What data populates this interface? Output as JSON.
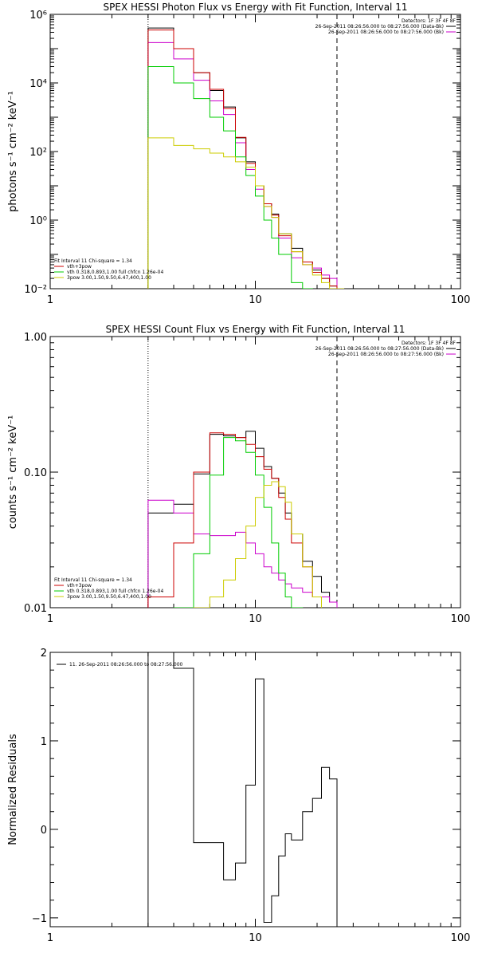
{
  "chart_data": [
    {
      "type": "line",
      "title": "SPEX HESSI Photon Flux vs Energy with Fit Function, Interval 11",
      "xlabel": "",
      "ylabel": "photons s⁻¹ cm⁻² keV⁻¹",
      "xscale": "log",
      "yscale": "log",
      "xlim": [
        1,
        100
      ],
      "ylim": [
        0.01,
        1000000
      ],
      "x_ticks": [
        {
          "v": 1,
          "label": "1"
        },
        {
          "v": 10,
          "label": "10"
        },
        {
          "v": 100,
          "label": "100"
        }
      ],
      "y_ticks": [
        {
          "v": 0.01,
          "label": "10⁻²"
        },
        {
          "v": 1,
          "label": "10⁰"
        },
        {
          "v": 100,
          "label": "10²"
        },
        {
          "v": 10000,
          "label": "10⁴"
        },
        {
          "v": 1000000,
          "label": "10⁶"
        }
      ],
      "dotted_x": 3,
      "dashed_x": 25,
      "legend_tr": [
        {
          "text": "Detectors: 1F 3F 4F 8F",
          "color": "#000000",
          "line": false
        },
        {
          "text": "26-Sep-2011 08:26:56.000 to 08:27:56.000 (Data-Bk)",
          "color": "#000000",
          "line": true
        },
        {
          "text": "26-Sep-2011 08:26:56.000 to 08:27:56.000 (Bk)",
          "color": "#cc00cc",
          "line": true
        }
      ],
      "legend_bl": [
        {
          "text": "Fit Interval 11    Chi-square = 1.34",
          "color": "#000000",
          "line": false
        },
        {
          "text": "vth+3pow",
          "color": "#cc0000",
          "line": true
        },
        {
          "text": "vth 0.318,0.893,1.00  full chfcn 1.26e-04",
          "color": "#00cc00",
          "line": true
        },
        {
          "text": "3pow 3.00,1.50,9.50,6.47,400,1.00",
          "color": "#cccc00",
          "line": true
        }
      ],
      "series": [
        {
          "color": "#000000",
          "edges": [
            3,
            4,
            5,
            6,
            7,
            8,
            9,
            10,
            11,
            12,
            13,
            15,
            17,
            19,
            21,
            23,
            25
          ],
          "values": [
            400000,
            100000,
            20000,
            6000,
            2000,
            250,
            50,
            10,
            3,
            1.5,
            0.4,
            0.15,
            0.06,
            0.035,
            0.02,
            0.012
          ]
        },
        {
          "color": "#cc00cc",
          "edges": [
            3,
            4,
            5,
            6,
            7,
            8,
            9,
            10,
            11,
            12,
            13,
            15,
            17,
            19,
            21,
            23,
            25
          ],
          "values": [
            150000,
            50000,
            12000,
            3000,
            1200,
            180,
            30,
            8,
            2.5,
            1.2,
            0.3,
            0.08,
            0.05,
            0.04,
            0.025,
            0.02
          ]
        },
        {
          "color": "#cc0000",
          "edges": [
            3,
            4,
            5,
            6,
            7,
            8,
            9,
            10,
            11,
            12,
            13,
            15,
            17,
            19,
            21,
            23,
            25
          ],
          "values": [
            350000,
            100000,
            20000,
            6500,
            1800,
            260,
            45,
            10,
            3,
            1.4,
            0.35,
            0.12,
            0.06,
            0.03,
            0.02,
            0.012
          ]
        },
        {
          "color": "#00cc00",
          "edges": [
            3,
            4,
            5,
            6,
            7,
            8,
            9,
            10,
            11,
            12,
            13,
            15,
            17,
            19
          ],
          "values": [
            30000,
            10000,
            3500,
            1000,
            400,
            70,
            20,
            5,
            1,
            0.3,
            0.1,
            0.015,
            0.009
          ]
        },
        {
          "color": "#cccc00",
          "edges": [
            3,
            4,
            5,
            6,
            7,
            8,
            9,
            10,
            11,
            12,
            13,
            15,
            17,
            19,
            21,
            23,
            25,
            27
          ],
          "values": [
            250,
            150,
            120,
            90,
            70,
            50,
            35,
            10,
            2.5,
            1.2,
            0.4,
            0.12,
            0.05,
            0.025,
            0.015,
            0.01,
            0.009
          ]
        }
      ]
    },
    {
      "type": "line",
      "title": "SPEX HESSI Count Flux vs Energy with Fit Function, Interval 11",
      "xlabel": "",
      "ylabel": "counts s⁻¹ cm⁻² keV⁻¹",
      "xscale": "log",
      "yscale": "log",
      "xlim": [
        1,
        100
      ],
      "ylim": [
        0.01,
        1.0
      ],
      "x_ticks": [
        {
          "v": 1,
          "label": "1"
        },
        {
          "v": 10,
          "label": "10"
        },
        {
          "v": 100,
          "label": "100"
        }
      ],
      "y_ticks": [
        {
          "v": 0.01,
          "label": "0.01"
        },
        {
          "v": 0.1,
          "label": "0.10"
        },
        {
          "v": 1,
          "label": "1.00"
        }
      ],
      "dotted_x": 3,
      "dashed_x": 25,
      "legend_tr": [
        {
          "text": "Detectors: 1F 3F 4F 8F",
          "color": "#000000",
          "line": false
        },
        {
          "text": "26-Sep-2011 08:26:56.000 to 08:27:56.000 (Data-Bk)",
          "color": "#000000",
          "line": true
        },
        {
          "text": "26-Sep-2011 08:26:56.000 to 08:27:56.000 (Bk)",
          "color": "#cc00cc",
          "line": true
        }
      ],
      "legend_bl": [
        {
          "text": "Fit Interval 11    Chi-square = 1.34",
          "color": "#000000",
          "line": false
        },
        {
          "text": "vth+3pow",
          "color": "#cc0000",
          "line": true
        },
        {
          "text": "vth 0.318,0.893,1.00  full chfcn 1.26e-04",
          "color": "#00cc00",
          "line": true
        },
        {
          "text": "3pow 3.00,1.50,9.50,6.47,400,1.00",
          "color": "#cccc00",
          "line": true
        }
      ],
      "series": [
        {
          "color": "#000000",
          "edges": [
            3,
            4,
            5,
            6,
            7,
            8,
            9,
            10,
            11,
            12,
            13,
            14,
            15,
            17,
            19,
            21,
            23,
            25
          ],
          "values": [
            0.05,
            0.058,
            0.097,
            0.19,
            0.185,
            0.18,
            0.2,
            0.15,
            0.11,
            0.09,
            0.07,
            0.05,
            0.035,
            0.022,
            0.017,
            0.013,
            0.011
          ]
        },
        {
          "color": "#cc00cc",
          "edges": [
            3,
            4,
            5,
            6,
            7,
            8,
            9,
            10,
            11,
            12,
            13,
            14,
            15,
            17,
            19,
            21,
            23,
            25
          ],
          "values": [
            0.062,
            0.05,
            0.035,
            0.034,
            0.034,
            0.036,
            0.03,
            0.025,
            0.02,
            0.018,
            0.016,
            0.015,
            0.014,
            0.013,
            0.012,
            0.012,
            0.011
          ]
        },
        {
          "color": "#cc0000",
          "edges": [
            3,
            4,
            5,
            6,
            7,
            8,
            9,
            10,
            11,
            12,
            13,
            14,
            15,
            17,
            19,
            21
          ],
          "values": [
            0.012,
            0.03,
            0.1,
            0.195,
            0.19,
            0.18,
            0.16,
            0.13,
            0.105,
            0.09,
            0.065,
            0.045,
            0.03,
            0.02,
            0.012
          ]
        },
        {
          "color": "#00cc00",
          "edges": [
            4,
            5,
            6,
            7,
            8,
            9,
            10,
            11,
            12,
            13,
            14,
            15,
            17
          ],
          "values": [
            0.01,
            0.025,
            0.095,
            0.18,
            0.17,
            0.14,
            0.095,
            0.055,
            0.03,
            0.018,
            0.012,
            0.01
          ]
        },
        {
          "color": "#cccc00",
          "edges": [
            5,
            6,
            7,
            8,
            9,
            10,
            11,
            12,
            13,
            14,
            15,
            17,
            19,
            21
          ],
          "values": [
            0.01,
            0.012,
            0.016,
            0.023,
            0.04,
            0.065,
            0.08,
            0.085,
            0.078,
            0.06,
            0.035,
            0.02,
            0.012
          ]
        }
      ]
    },
    {
      "type": "line",
      "title": "",
      "xlabel": "",
      "ylabel": "Normalized Residuals",
      "xscale": "log",
      "yscale": "linear",
      "xlim": [
        1,
        100
      ],
      "ylim": [
        -1.1,
        2.0
      ],
      "x_ticks": [
        {
          "v": 1,
          "label": "1"
        },
        {
          "v": 10,
          "label": "10"
        },
        {
          "v": 100,
          "label": "100"
        }
      ],
      "y_ticks": [
        {
          "v": -1,
          "label": "−1"
        },
        {
          "v": 0,
          "label": "0"
        },
        {
          "v": 1,
          "label": "1"
        },
        {
          "v": 2,
          "label": "2"
        }
      ],
      "legend_tl": [
        {
          "text": "11. 26-Sep-2011 08:26:56.000 to 08:27:56.000",
          "color": "#000000",
          "line": true
        }
      ],
      "series": [
        {
          "color": "#000000",
          "edges": [
            3,
            4,
            5,
            6,
            7,
            8,
            9,
            10,
            11,
            12,
            13,
            14,
            15,
            17,
            19,
            21,
            23,
            25
          ],
          "values": [
            2.0,
            1.82,
            -0.15,
            -0.15,
            -0.57,
            -0.38,
            0.5,
            1.7,
            -1.05,
            -0.75,
            -0.3,
            -0.05,
            -0.12,
            0.2,
            0.35,
            0.7,
            0.57
          ]
        }
      ]
    }
  ]
}
